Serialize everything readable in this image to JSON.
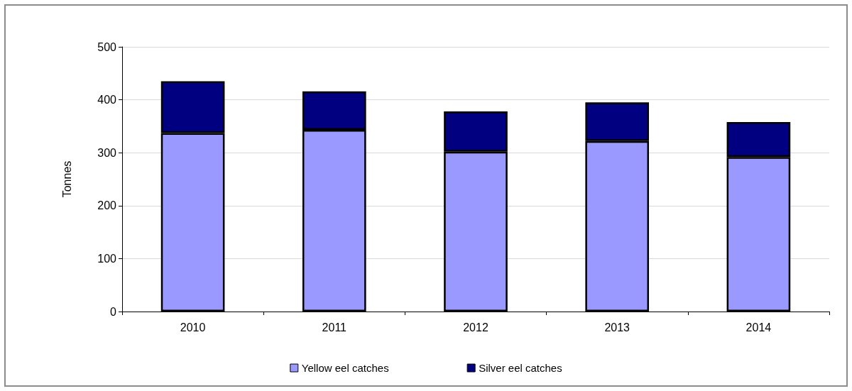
{
  "chart_data": {
    "type": "bar",
    "ylabel": "Tonnes",
    "categories": [
      "2010",
      "2011",
      "2012",
      "2013",
      "2014"
    ],
    "series": [
      {
        "name": "Yellow eel catches",
        "color": "#9999ff",
        "values": [
          337,
          343,
          302,
          322,
          292
        ]
      },
      {
        "name": "Silver eel catches",
        "color": "#000080",
        "values": [
          98,
          73,
          76,
          73,
          66
        ]
      }
    ],
    "stacked": true,
    "ylim": [
      0,
      500
    ],
    "yticks": [
      0,
      100,
      200,
      300,
      400,
      500
    ],
    "grid": "y",
    "legend": "bottom"
  }
}
